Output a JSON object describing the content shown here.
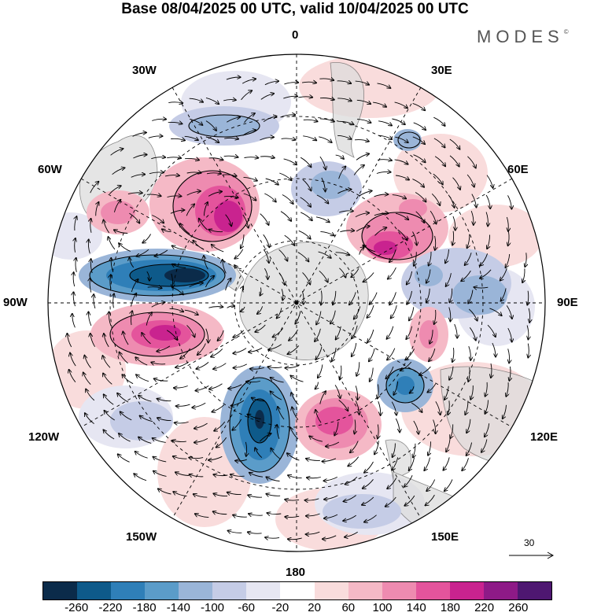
{
  "title": "Base 08/04/2025 00 UTC, valid 10/04/2025 00 UTC",
  "brand": "MODES",
  "brand_mark": "©",
  "longitude_labels": {
    "top": "0",
    "right_top": "30E",
    "right_upper": "60E",
    "right": "90E",
    "right_lower": "120E",
    "right_bottom": "150E",
    "bottom": "180",
    "left_bottom": "150W",
    "left_lower": "120W",
    "left": "90W",
    "left_upper": "60W",
    "left_top": "30W"
  },
  "reference_vector": {
    "label": "30"
  },
  "colorbar": {
    "colors": [
      "#0b2b4a",
      "#0e5a8a",
      "#2f7fb8",
      "#5b9cc9",
      "#9ab5d8",
      "#c5cce6",
      "#e6e6f2",
      "#ffffff",
      "#f9dcdc",
      "#f5b9c6",
      "#ee8bb0",
      "#e4549c",
      "#c9238f",
      "#8e1a87",
      "#4e1771"
    ],
    "ticks": [
      "-260",
      "-220",
      "-180",
      "-140",
      "-100",
      "-60",
      "-20",
      "20",
      "60",
      "100",
      "140",
      "180",
      "220",
      "260"
    ]
  },
  "anomaly_blobs": [
    {
      "name": "neg-anomaly-west",
      "value": -260
    },
    {
      "name": "pos-anomaly-northwest",
      "value": 220
    },
    {
      "name": "pos-anomaly-far-west",
      "value": 180
    },
    {
      "name": "pos-anomaly-southwest",
      "value": 220
    },
    {
      "name": "neg-anomaly-south",
      "value": -250
    },
    {
      "name": "pos-anomaly-south",
      "value": 180
    },
    {
      "name": "pos-anomaly-east",
      "value": 220
    },
    {
      "name": "neg-anomaly-southeast",
      "value": -180
    },
    {
      "name": "neg-anomaly-north",
      "value": -100
    },
    {
      "name": "neg-anomaly-center-north",
      "value": -100
    },
    {
      "name": "neg-anomaly-east",
      "value": -100
    }
  ]
}
